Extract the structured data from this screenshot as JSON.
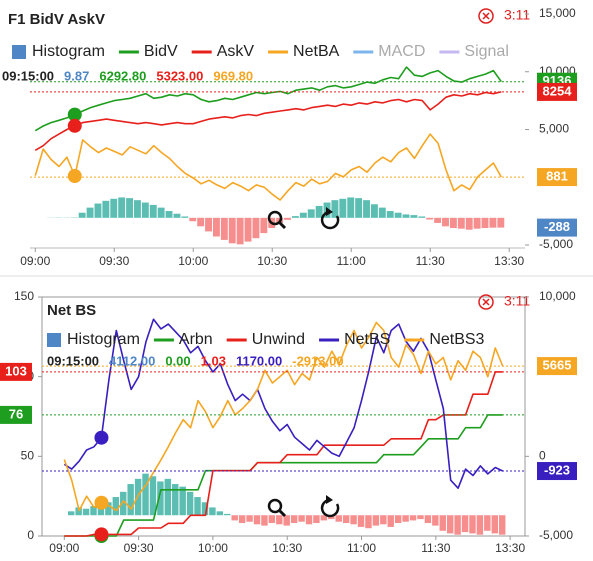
{
  "chart_data": [
    {
      "type": "line",
      "title": "F1 BidV AskV",
      "timer": "3:11",
      "x": [
        0,
        3,
        6,
        9,
        12,
        15,
        18,
        21,
        24,
        27,
        30,
        33,
        36,
        39,
        42,
        45,
        48,
        51,
        54,
        57,
        60,
        63,
        66,
        69,
        72,
        75,
        78,
        81,
        84,
        87,
        90,
        93,
        96,
        99,
        102,
        105,
        108,
        111,
        114,
        117,
        120,
        123,
        126,
        129,
        132,
        135,
        138,
        141,
        144,
        147,
        150,
        153,
        156,
        159,
        162,
        165,
        168,
        171,
        174,
        177
      ],
      "xlim": [
        -2,
        186
      ],
      "xticks": [
        {
          "value": 0,
          "label": "09:00"
        },
        {
          "value": 30,
          "label": "09:30"
        },
        {
          "value": 60,
          "label": "10:00"
        },
        {
          "value": 90,
          "label": "10:30"
        },
        {
          "value": 120,
          "label": "11:00"
        },
        {
          "value": 150,
          "label": "11:30"
        },
        {
          "value": 180,
          "label": "13:30"
        }
      ],
      "ylim": [
        -5000,
        15000
      ],
      "y_side": "right",
      "yticks": [
        {
          "value": 15000,
          "label": "15,000"
        },
        {
          "value": 10000,
          "label": "10,000"
        },
        {
          "value": 5000,
          "label": "5,000"
        },
        {
          "value": -5000,
          "label": "-5,000"
        }
      ],
      "y3lim": [
        -800,
        6000
      ],
      "readout_time": "09:15:00",
      "readout": [
        "9.87",
        "6292.80",
        "5323.00",
        "969.80"
      ],
      "series": [
        {
          "name": "Histogram",
          "kind": "histogram",
          "axis": "y3",
          "color": "#4f86c6",
          "pos_color": "#3fb3a6",
          "neg_color": "#f47a7a",
          "tag": true,
          "values": [
            0,
            0,
            5,
            8,
            6,
            9.87,
            150,
            300,
            420,
            500,
            560,
            600,
            580,
            520,
            450,
            380,
            300,
            200,
            120,
            40,
            -100,
            -250,
            -400,
            -550,
            -650,
            -750,
            -780,
            -700,
            -600,
            -450,
            -300,
            -150,
            -60,
            50,
            150,
            250,
            350,
            450,
            520,
            560,
            600,
            580,
            520,
            400,
            300,
            200,
            150,
            100,
            80,
            40,
            -50,
            -150,
            -250,
            -300,
            -320,
            -350,
            -320,
            -300,
            -290,
            -288
          ]
        },
        {
          "name": "BidV",
          "color": "#1e9e1e",
          "tag": true,
          "values": [
            4900,
            5300,
            5600,
            5800,
            6000,
            6292.8,
            6600,
            6900,
            7100,
            7300,
            7500,
            7600,
            7700,
            7900,
            8100,
            7700,
            7800,
            8000,
            7900,
            8100,
            8000,
            7600,
            7400,
            7500,
            7700,
            7600,
            7800,
            8000,
            8200,
            8100,
            8200,
            8300,
            8100,
            8400,
            8500,
            8600,
            8400,
            8700,
            8800,
            8600,
            8700,
            8900,
            9100,
            9000,
            9300,
            9500,
            9400,
            10400,
            9700,
            9600,
            9900,
            10100,
            9600,
            9200,
            9100,
            9400,
            9600,
            9800,
            10100,
            9136
          ]
        },
        {
          "name": "AskV",
          "color": "#e8201c",
          "tag": true,
          "values": [
            3200,
            3600,
            4200,
            4600,
            5000,
            5323,
            5600,
            5700,
            5800,
            5900,
            5800,
            5700,
            5600,
            5500,
            5600,
            5500,
            5400,
            5500,
            5600,
            5500,
            5500,
            5700,
            5900,
            6000,
            6100,
            6000,
            6200,
            6300,
            6200,
            6400,
            6500,
            6600,
            6700,
            6800,
            6700,
            6900,
            7000,
            7100,
            7000,
            7200,
            7100,
            7300,
            7200,
            7400,
            7300,
            7500,
            7600,
            7400,
            7600,
            7500,
            6700,
            7200,
            7800,
            8000,
            7900,
            8100,
            8000,
            8200,
            8100,
            8254
          ]
        },
        {
          "name": "NetBA",
          "color": "#f5a623",
          "tag": true,
          "values": [
            1000,
            3300,
            2400,
            1800,
            2600,
            969.8,
            4100,
            3500,
            3000,
            3400,
            3100,
            2800,
            3500,
            3200,
            2900,
            3600,
            3000,
            2500,
            1800,
            1200,
            800,
            300,
            600,
            200,
            -100,
            400,
            100,
            -300,
            200,
            0,
            -600,
            -1100,
            -300,
            400,
            100,
            700,
            300,
            500,
            1200,
            900,
            1500,
            1800,
            1300,
            2100,
            2600,
            2200,
            3000,
            3400,
            2500,
            3600,
            4600,
            3800,
            1500,
            -300,
            200,
            -200,
            900,
            1500,
            2100,
            881
          ]
        }
      ],
      "inactive_series": [
        {
          "name": "MACD",
          "color": "#7cb5ec"
        },
        {
          "name": "Signal",
          "color": "#c5b8f0"
        }
      ]
    },
    {
      "type": "line",
      "title": "Net BS",
      "timer": "3:11",
      "x": [
        0,
        3,
        6,
        9,
        12,
        15,
        18,
        21,
        24,
        27,
        30,
        33,
        36,
        39,
        42,
        45,
        48,
        51,
        54,
        57,
        60,
        63,
        66,
        69,
        72,
        75,
        78,
        81,
        84,
        87,
        90,
        93,
        96,
        99,
        102,
        105,
        108,
        111,
        114,
        117,
        120,
        123,
        126,
        129,
        132,
        135,
        138,
        141,
        144,
        147,
        150,
        153,
        156,
        159,
        162,
        165,
        168,
        171,
        174,
        177
      ],
      "xlim": [
        -9,
        186
      ],
      "xticks": [
        {
          "value": 0,
          "label": "09:00"
        },
        {
          "value": 30,
          "label": "09:30"
        },
        {
          "value": 60,
          "label": "10:00"
        },
        {
          "value": 90,
          "label": "10:30"
        },
        {
          "value": 120,
          "label": "11:00"
        },
        {
          "value": 150,
          "label": "11:30"
        },
        {
          "value": 180,
          "label": "13:30"
        }
      ],
      "ylim": [
        0,
        150
      ],
      "y_side": "left",
      "yticks": [
        0,
        50,
        100,
        150
      ],
      "y2lim": [
        -5000,
        10000
      ],
      "y2_side": "right",
      "y2ticks": [
        {
          "value": 10000,
          "label": "10,000"
        },
        0,
        {
          "value": -5000,
          "label": "-5,000"
        }
      ],
      "y3lim": [
        -8000,
        84000
      ],
      "readout_time": "09:15:00",
      "readout": [
        "4112.00",
        "0.00",
        "1.03",
        "1170.00",
        "-2913.00"
      ],
      "series": [
        {
          "name": "Histogram",
          "kind": "histogram",
          "axis": "y3",
          "color": "#4f86c6",
          "pos_color": "#3fb3a6",
          "neg_color": "#f47a7a",
          "values": [
            0,
            1500,
            3000,
            2500,
            3500,
            4112,
            5000,
            7000,
            9000,
            12000,
            14000,
            16000,
            15000,
            13000,
            14000,
            12000,
            11000,
            9000,
            7000,
            5000,
            3000,
            1500,
            500,
            -2000,
            -3000,
            -2500,
            -3500,
            -4000,
            -3000,
            -3500,
            -4000,
            -3000,
            -2500,
            -3500,
            -3000,
            -2000,
            -1500,
            -2500,
            -3000,
            -3500,
            -4500,
            -5000,
            -4000,
            -3500,
            -4500,
            -3000,
            -2500,
            -2000,
            -1500,
            -3000,
            -4000,
            -6000,
            -7000,
            -7500,
            -6500,
            -7000,
            -7500,
            -6000,
            -7000,
            -7500
          ]
        },
        {
          "name": "Arbn",
          "color": "#1e9e1e",
          "tag": true,
          "values": [
            0,
            0,
            0,
            0,
            0,
            0,
            0,
            0,
            10,
            10,
            10,
            10,
            10,
            29,
            29,
            29,
            29,
            29,
            29,
            41,
            41,
            41,
            41,
            41,
            41,
            41,
            46,
            46,
            46,
            46,
            46,
            46,
            46,
            46,
            46,
            46,
            46,
            46,
            46,
            46,
            46,
            46,
            46,
            51,
            51,
            51,
            51,
            51,
            56,
            61,
            61,
            61,
            61,
            61,
            68,
            68,
            68,
            76,
            76,
            76
          ]
        },
        {
          "name": "Unwind",
          "color": "#e8201c",
          "tag": true,
          "values": [
            0,
            0,
            0,
            0,
            1.03,
            1.03,
            1.03,
            1.03,
            1.03,
            1.03,
            5,
            5,
            5,
            5,
            8,
            8,
            8,
            13,
            13,
            13,
            41,
            41,
            41,
            41,
            41,
            41,
            46,
            46,
            46,
            46,
            51,
            51,
            51,
            51,
            51,
            57,
            57,
            57,
            57,
            57,
            57,
            57,
            57,
            57,
            61,
            61,
            61,
            61,
            61,
            73,
            73,
            76,
            76,
            76,
            76,
            89,
            89,
            89,
            103,
            103
          ]
        },
        {
          "name": "NetBS",
          "axis": "y2",
          "color": "#3a1fc0",
          "tag": true,
          "values": [
            -500,
            -800,
            -300,
            400,
            600,
            1170,
            4800,
            7900,
            6000,
            4200,
            5000,
            7200,
            8600,
            8000,
            8300,
            7800,
            7300,
            6500,
            6900,
            6000,
            5300,
            5800,
            4500,
            3500,
            3900,
            3500,
            4200,
            3000,
            2200,
            1600,
            2000,
            1200,
            800,
            400,
            1000,
            600,
            200,
            0,
            900,
            1800,
            3500,
            5400,
            7500,
            6500,
            7900,
            8300,
            7200,
            6600,
            7400,
            6600,
            4800,
            3000,
            -1500,
            -2000,
            -800,
            -1200,
            -600,
            -1100,
            -700,
            -923
          ]
        },
        {
          "name": "NetBS3",
          "axis": "y2",
          "color": "#f5a623",
          "tag": true,
          "values": [
            -200,
            -1500,
            -3400,
            -2500,
            -3200,
            -2913,
            -3100,
            -3400,
            -2800,
            -3300,
            -2400,
            -1800,
            -1000,
            -230,
            600,
            1500,
            2300,
            1800,
            3500,
            2800,
            1800,
            2500,
            3500,
            2600,
            3000,
            3500,
            4200,
            5400,
            4600,
            5000,
            5400,
            4500,
            5200,
            4800,
            6200,
            5600,
            6600,
            5800,
            7000,
            7900,
            6800,
            7500,
            8400,
            7900,
            6200,
            5600,
            7000,
            6400,
            5200,
            6600,
            5800,
            6200,
            4800,
            6000,
            5400,
            6600,
            6200,
            5000,
            6800,
            5665
          ]
        }
      ]
    }
  ]
}
